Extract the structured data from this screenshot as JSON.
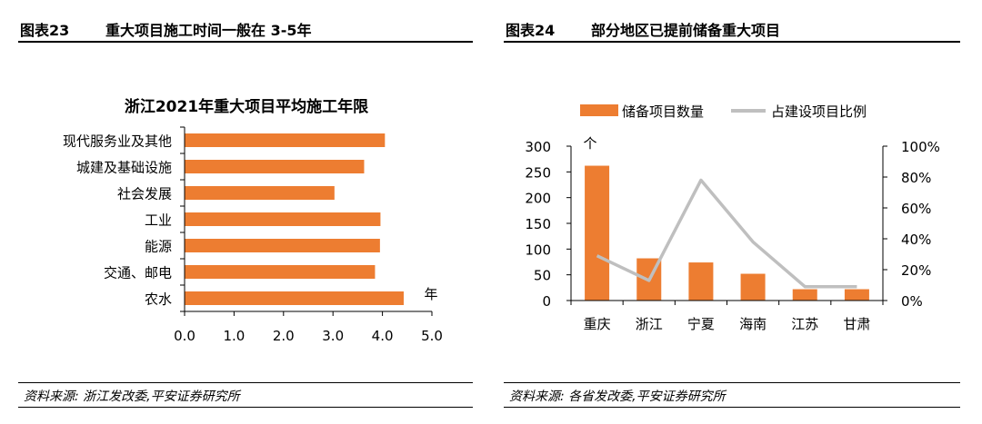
{
  "left_panel": {
    "fig_label": "图表23",
    "fig_title": "重大项目施工时间一般在 3-5年",
    "source": "资料来源: 浙江发改委,平安证券研究所"
  },
  "right_panel": {
    "fig_label": "图表24",
    "fig_title": "部分地区已提前储备重大项目",
    "source": "资料来源: 各省发改委,平安证券研究所"
  },
  "chart_data": [
    {
      "type": "bar",
      "orientation": "horizontal",
      "title": "浙江2021年重大项目平均施工年限",
      "categories": [
        "现代服务业及其他",
        "城建及基础设施",
        "社会发展",
        "工业",
        "能源",
        "交通、邮电",
        "农水"
      ],
      "values": [
        4.05,
        3.63,
        3.03,
        3.96,
        3.95,
        3.85,
        4.43
      ],
      "x_unit": "年",
      "xlim": [
        0,
        5
      ],
      "x_ticks": [
        "0.0",
        "1.0",
        "2.0",
        "3.0",
        "4.0",
        "5.0"
      ],
      "bar_color": "#ED7D31",
      "grid": false
    },
    {
      "type": "bar+line",
      "categories": [
        "重庆",
        "浙江",
        "宁夏",
        "海南",
        "江苏",
        "甘肃"
      ],
      "series": [
        {
          "name": "储备项目数量",
          "type": "bar",
          "axis": "left",
          "color": "#ED7D31",
          "values": [
            262,
            82,
            74,
            52,
            22,
            22
          ]
        },
        {
          "name": "占建设项目比例",
          "type": "line",
          "axis": "right",
          "color": "#BFBFBF",
          "values": [
            29,
            13,
            78,
            38,
            9,
            9
          ]
        }
      ],
      "y_left_unit": "个",
      "y_left_lim": [
        0,
        300
      ],
      "y_left_ticks": [
        "0",
        "50",
        "100",
        "150",
        "200",
        "250",
        "300"
      ],
      "y_right_lim": [
        0,
        100
      ],
      "y_right_ticks": [
        "0%",
        "20%",
        "40%",
        "60%",
        "80%",
        "100%"
      ],
      "legend_position": "top",
      "grid": false
    }
  ]
}
